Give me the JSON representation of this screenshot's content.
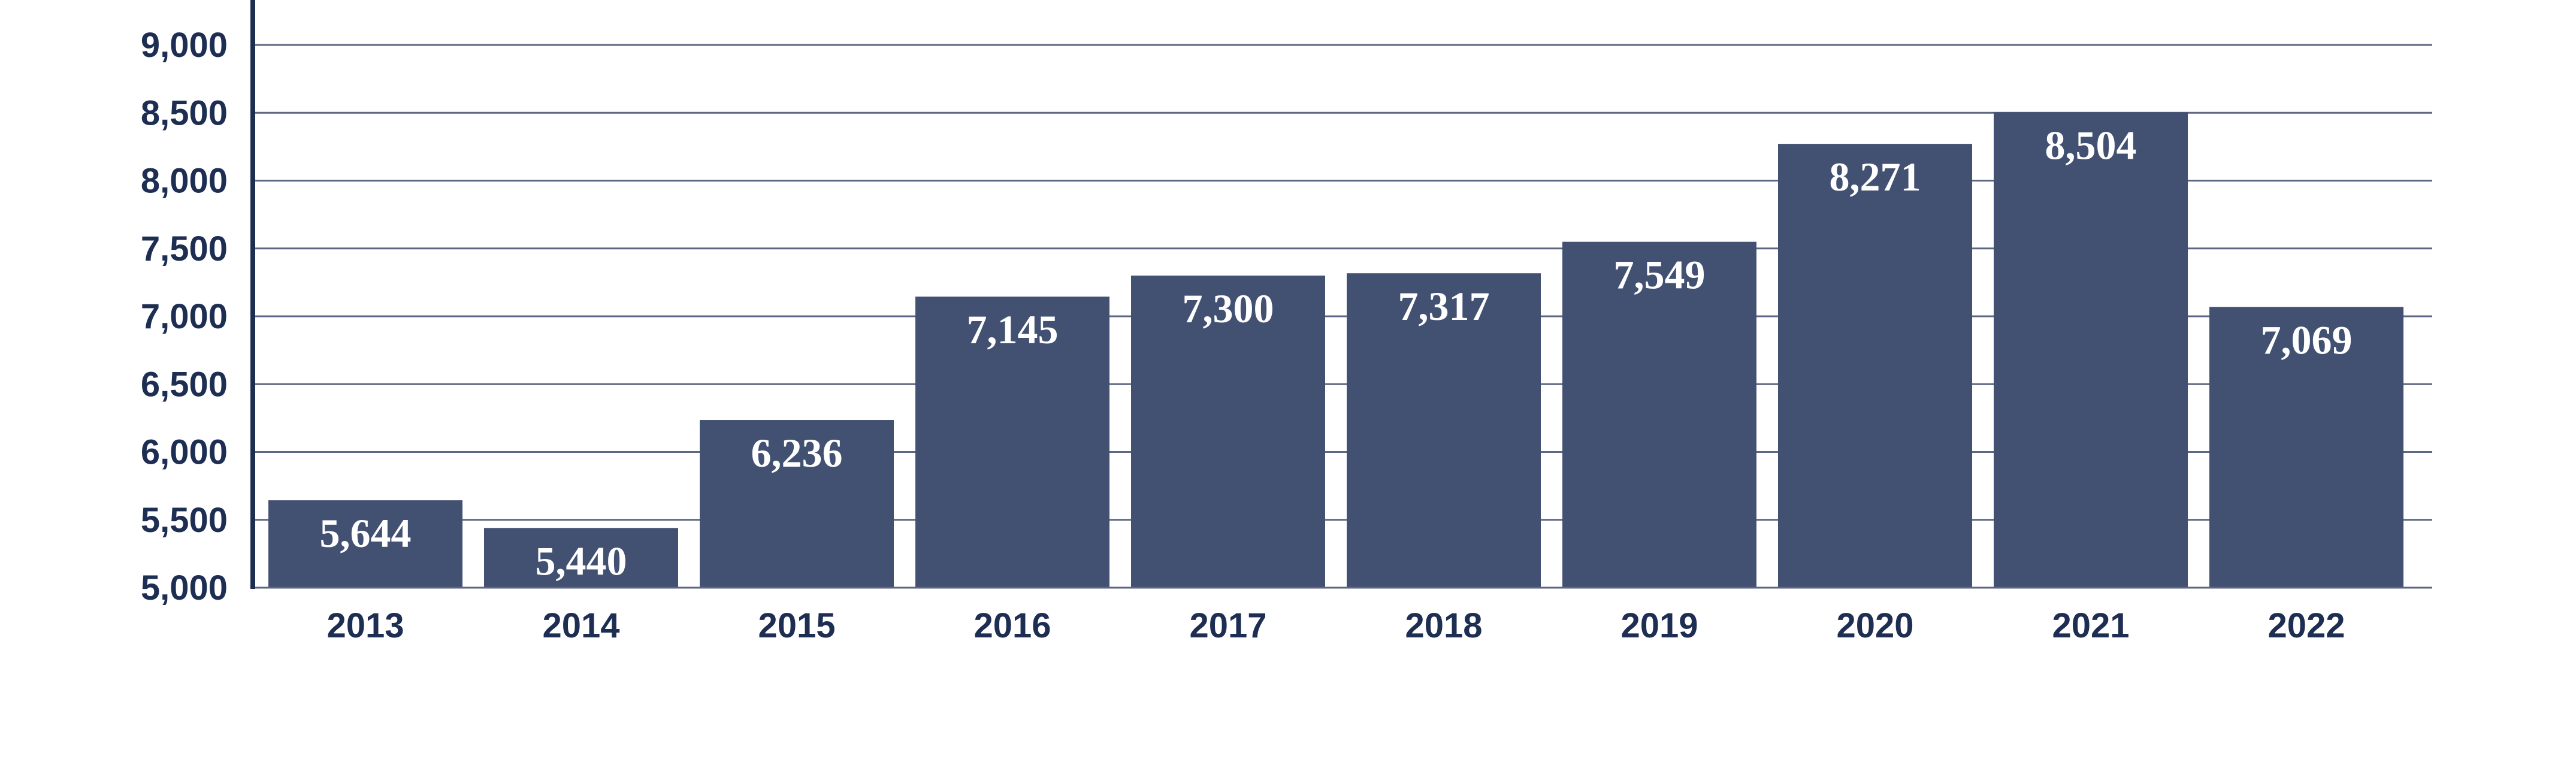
{
  "chart_data": {
    "type": "bar",
    "title": "",
    "xlabel": "",
    "ylabel": "",
    "categories": [
      "2013",
      "2014",
      "2015",
      "2016",
      "2017",
      "2018",
      "2019",
      "2020",
      "2021",
      "2022"
    ],
    "values": [
      5644,
      5440,
      6236,
      7145,
      7300,
      7317,
      7549,
      8271,
      8504,
      7069
    ],
    "value_labels": [
      "5,644",
      "5,440",
      "6,236",
      "7,145",
      "7,300",
      "7,317",
      "7,549",
      "8,271",
      "8,504",
      "7,069"
    ],
    "ylim": [
      5000,
      9000
    ],
    "yticks": [
      5000,
      5500,
      6000,
      6500,
      7000,
      7500,
      8000,
      8500,
      9000
    ],
    "ytick_labels": [
      "5,000",
      "5,500",
      "6,000",
      "6,500",
      "7,000",
      "7,500",
      "8,000",
      "8,500",
      "9,000"
    ],
    "grid": true,
    "legend": "none",
    "colors": {
      "bar": "#425072",
      "gridline": "#5d6682",
      "axis": "#1d2e52",
      "tick_text": "#1d2e52",
      "value_text": "#ffffff"
    }
  }
}
